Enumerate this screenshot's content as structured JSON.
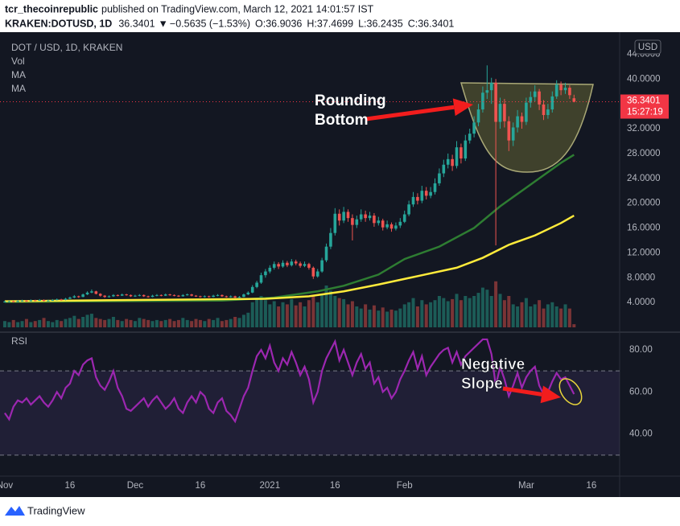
{
  "header": {
    "author": "tcr_thecoinrepublic",
    "published": "published on TradingView.com, March 12, 2021 14:01:57 IST",
    "symbol": "KRAKEN:DOTUSD, 1D",
    "last": "36.3401",
    "arrow": "▼",
    "change": "−0.5635 (−1.53%)",
    "ohlc": [
      [
        "O:",
        "36.9036"
      ],
      [
        "H:",
        "37.4699"
      ],
      [
        "L:",
        "36.2435"
      ],
      [
        "C:",
        "36.3401"
      ]
    ]
  },
  "legend": {
    "title": "DOT / USD, 1D, KRAKEN",
    "items": [
      "Vol",
      "MA",
      "MA"
    ]
  },
  "chart_data": {
    "type": "candlestick",
    "xlim": [
      -1.1,
      141.5
    ],
    "xticks": [
      {
        "value": 0,
        "label": "Nov"
      },
      {
        "value": 15,
        "label": "16"
      },
      {
        "value": 30,
        "label": "Dec"
      },
      {
        "value": 45,
        "label": "16"
      },
      {
        "value": 61,
        "label": "2021"
      },
      {
        "value": 76,
        "label": "16"
      },
      {
        "value": 92,
        "label": "Feb"
      },
      {
        "value": 120,
        "label": "Mar"
      },
      {
        "value": 135,
        "label": "16"
      }
    ],
    "ylim": [
      0,
      46.9
    ],
    "yticks": [
      {
        "value": 4,
        "label": "4.0000"
      },
      {
        "value": 8,
        "label": "8.0000"
      },
      {
        "value": 12,
        "label": "12.0000"
      },
      {
        "value": 16,
        "label": "16.0000"
      },
      {
        "value": 20,
        "label": "20.0000"
      },
      {
        "value": 24,
        "label": "24.0000"
      },
      {
        "value": 28,
        "label": "28.0000"
      },
      {
        "value": 32,
        "label": "32.0000"
      },
      {
        "value": 36,
        "label": "36.0000"
      },
      {
        "value": 40,
        "label": "40.0000"
      },
      {
        "value": 44,
        "label": "44.0000"
      }
    ],
    "currency": "USD",
    "last_price": 36.3401,
    "countdown": "15:27:19",
    "last_color": "#f23645",
    "up_color": "#26a69a",
    "down_color": "#ef5350",
    "candles": [
      [
        4.1,
        4.3,
        4.0,
        4.15
      ],
      [
        4.15,
        4.3,
        4.05,
        4.2
      ],
      [
        4.2,
        4.3,
        4.0,
        4.1
      ],
      [
        4.1,
        4.4,
        4.05,
        4.25
      ],
      [
        4.25,
        4.45,
        4.15,
        4.3
      ],
      [
        4.3,
        4.4,
        4.1,
        4.2
      ],
      [
        4.2,
        4.5,
        4.15,
        4.35
      ],
      [
        4.35,
        4.45,
        4.2,
        4.3
      ],
      [
        4.3,
        4.55,
        4.25,
        4.4
      ],
      [
        4.4,
        4.5,
        4.15,
        4.25
      ],
      [
        4.25,
        4.45,
        4.2,
        4.3
      ],
      [
        4.3,
        4.55,
        4.25,
        4.4
      ],
      [
        4.4,
        4.65,
        4.35,
        4.5
      ],
      [
        4.5,
        4.6,
        4.3,
        4.4
      ],
      [
        4.4,
        4.75,
        4.35,
        4.6
      ],
      [
        4.6,
        4.95,
        4.55,
        4.8
      ],
      [
        4.8,
        5.2,
        4.7,
        5.0
      ],
      [
        5.0,
        5.1,
        4.75,
        4.9
      ],
      [
        4.9,
        5.45,
        4.85,
        5.3
      ],
      [
        5.3,
        5.8,
        5.2,
        5.6
      ],
      [
        5.6,
        6.1,
        5.5,
        5.8
      ],
      [
        5.8,
        5.9,
        5.3,
        5.4
      ],
      [
        5.4,
        5.5,
        4.95,
        5.1
      ],
      [
        5.1,
        5.2,
        4.75,
        4.9
      ],
      [
        4.9,
        5.15,
        4.8,
        5.0
      ],
      [
        5.0,
        5.35,
        4.9,
        5.2
      ],
      [
        5.2,
        5.3,
        5.0,
        5.1
      ],
      [
        5.1,
        5.45,
        5.05,
        5.3
      ],
      [
        5.3,
        5.4,
        5.1,
        5.2
      ],
      [
        5.2,
        5.3,
        4.9,
        5.0
      ],
      [
        5.0,
        5.25,
        4.9,
        5.1
      ],
      [
        5.1,
        5.35,
        5.0,
        5.2
      ],
      [
        5.2,
        5.3,
        4.9,
        5.0
      ],
      [
        5.0,
        5.1,
        4.8,
        4.9
      ],
      [
        4.9,
        5.25,
        4.85,
        5.1
      ],
      [
        5.1,
        5.35,
        5.0,
        5.2
      ],
      [
        5.2,
        5.3,
        5.0,
        5.1
      ],
      [
        5.1,
        5.45,
        5.05,
        5.3
      ],
      [
        5.3,
        5.4,
        5.1,
        5.2
      ],
      [
        5.2,
        5.3,
        5.0,
        5.1
      ],
      [
        5.1,
        5.2,
        4.9,
        5.0
      ],
      [
        5.0,
        5.35,
        4.95,
        5.2
      ],
      [
        5.2,
        5.45,
        5.1,
        5.3
      ],
      [
        5.3,
        5.4,
        5.0,
        5.1
      ],
      [
        5.1,
        5.2,
        4.9,
        5.0
      ],
      [
        5.0,
        5.1,
        4.8,
        4.9
      ],
      [
        4.9,
        5.15,
        4.8,
        5.0
      ],
      [
        5.0,
        5.1,
        4.8,
        4.9
      ],
      [
        4.9,
        5.25,
        4.85,
        5.1
      ],
      [
        5.1,
        5.35,
        5.0,
        5.2
      ],
      [
        5.2,
        5.3,
        4.9,
        5.0
      ],
      [
        5.0,
        5.1,
        4.8,
        4.9
      ],
      [
        4.9,
        5.15,
        4.8,
        5.0
      ],
      [
        5.0,
        5.1,
        4.7,
        4.8
      ],
      [
        4.8,
        5.05,
        4.7,
        4.9
      ],
      [
        4.9,
        5.45,
        4.85,
        5.3
      ],
      [
        5.3,
        5.8,
        5.2,
        5.6
      ],
      [
        5.6,
        6.8,
        5.5,
        6.5
      ],
      [
        6.5,
        7.5,
        6.3,
        7.2
      ],
      [
        7.2,
        8.8,
        7.0,
        8.4
      ],
      [
        8.4,
        9.4,
        8.0,
        9.0
      ],
      [
        9.0,
        10.0,
        8.7,
        9.6
      ],
      [
        9.6,
        10.6,
        9.3,
        10.2
      ],
      [
        10.2,
        10.5,
        9.4,
        9.8
      ],
      [
        9.8,
        10.8,
        9.6,
        10.4
      ],
      [
        10.4,
        10.7,
        9.7,
        10.0
      ],
      [
        10.0,
        11.0,
        9.8,
        10.6
      ],
      [
        10.6,
        10.9,
        10.0,
        10.3
      ],
      [
        10.3,
        10.6,
        9.6,
        9.9
      ],
      [
        9.9,
        10.6,
        9.7,
        10.2
      ],
      [
        10.2,
        10.4,
        9.3,
        9.6
      ],
      [
        9.6,
        9.8,
        7.8,
        8.2
      ],
      [
        8.2,
        9.4,
        8.0,
        9.0
      ],
      [
        9.0,
        11.2,
        8.8,
        10.8
      ],
      [
        10.8,
        13.5,
        10.5,
        13.0
      ],
      [
        13.0,
        16.0,
        12.6,
        15.2
      ],
      [
        15.2,
        19.2,
        14.8,
        18.3
      ],
      [
        18.3,
        19.0,
        16.4,
        17.2
      ],
      [
        17.2,
        19.4,
        16.8,
        18.6
      ],
      [
        18.6,
        19.0,
        17.0,
        17.6
      ],
      [
        17.6,
        18.2,
        14.0,
        16.5
      ],
      [
        16.5,
        18.0,
        16.0,
        17.4
      ],
      [
        17.4,
        19.0,
        17.0,
        18.2
      ],
      [
        18.2,
        18.8,
        17.0,
        17.6
      ],
      [
        17.6,
        18.6,
        17.2,
        18.0
      ],
      [
        18.0,
        18.4,
        16.2,
        16.8
      ],
      [
        16.8,
        17.8,
        16.4,
        17.2
      ],
      [
        17.2,
        17.5,
        15.6,
        16.1
      ],
      [
        16.1,
        17.2,
        15.8,
        16.6
      ],
      [
        16.6,
        16.9,
        15.4,
        15.9
      ],
      [
        15.9,
        16.9,
        15.6,
        16.4
      ],
      [
        16.4,
        17.6,
        16.0,
        17.0
      ],
      [
        17.0,
        18.8,
        16.8,
        18.2
      ],
      [
        18.2,
        20.4,
        17.9,
        19.8
      ],
      [
        19.8,
        21.8,
        19.4,
        21.0
      ],
      [
        21.0,
        21.6,
        19.8,
        20.4
      ],
      [
        20.4,
        22.8,
        20.0,
        22.0
      ],
      [
        22.0,
        22.6,
        20.6,
        21.2
      ],
      [
        21.2,
        22.6,
        20.8,
        21.8
      ],
      [
        21.8,
        24.0,
        21.4,
        23.2
      ],
      [
        23.2,
        25.6,
        22.8,
        24.8
      ],
      [
        24.8,
        27.0,
        24.2,
        26.2
      ],
      [
        26.2,
        28.0,
        25.6,
        27.1
      ],
      [
        27.1,
        27.8,
        25.2,
        26.0
      ],
      [
        26.0,
        30.0,
        25.6,
        29.0
      ],
      [
        29.0,
        29.6,
        26.4,
        27.2
      ],
      [
        27.2,
        31.0,
        26.8,
        30.1
      ],
      [
        30.1,
        32.0,
        29.6,
        31.2
      ],
      [
        31.2,
        34.0,
        30.6,
        33.0
      ],
      [
        33.0,
        36.0,
        32.4,
        35.1
      ],
      [
        35.1,
        38.8,
        34.6,
        37.8
      ],
      [
        37.8,
        42.2,
        36.8,
        38.2
      ],
      [
        38.2,
        40.2,
        36.0,
        39.4
      ],
      [
        39.4,
        40.0,
        13.2,
        33.1
      ],
      [
        33.1,
        37.0,
        32.0,
        36.0
      ],
      [
        36.0,
        36.8,
        32.2,
        33.2
      ],
      [
        33.2,
        34.0,
        28.4,
        30.1
      ],
      [
        30.1,
        33.0,
        29.2,
        32.2
      ],
      [
        32.2,
        35.0,
        31.4,
        34.0
      ],
      [
        34.0,
        34.6,
        32.0,
        33.1
      ],
      [
        33.1,
        37.0,
        32.6,
        36.2
      ],
      [
        36.2,
        38.0,
        35.4,
        37.1
      ],
      [
        37.1,
        39.0,
        36.4,
        38.0
      ],
      [
        38.0,
        38.4,
        35.0,
        35.9
      ],
      [
        35.9,
        36.6,
        33.4,
        34.2
      ],
      [
        34.2,
        36.0,
        33.6,
        35.1
      ],
      [
        35.1,
        38.0,
        34.6,
        37.2
      ],
      [
        37.2,
        39.8,
        36.8,
        39.1
      ],
      [
        39.1,
        39.6,
        37.4,
        38.2
      ],
      [
        38.2,
        39.4,
        37.6,
        38.6
      ],
      [
        38.6,
        39.0,
        36.8,
        37.4
      ],
      [
        36.9036,
        37.4699,
        36.2435,
        36.3401
      ]
    ],
    "volume_lim": [
      0,
      100
    ],
    "volume": [
      6,
      5,
      7,
      5,
      6,
      8,
      5,
      6,
      7,
      9,
      6,
      5,
      7,
      6,
      8,
      9,
      11,
      8,
      10,
      12,
      13,
      9,
      8,
      7,
      8,
      10,
      7,
      6,
      8,
      7,
      6,
      9,
      8,
      7,
      6,
      7,
      6,
      7,
      8,
      6,
      7,
      9,
      7,
      6,
      8,
      7,
      6,
      8,
      7,
      9,
      6,
      7,
      8,
      10,
      9,
      12,
      14,
      24,
      28,
      30,
      26,
      22,
      25,
      20,
      24,
      22,
      27,
      21,
      24,
      20,
      26,
      30,
      24,
      32,
      40,
      35,
      30,
      28,
      27,
      22,
      25,
      20,
      18,
      22,
      17,
      21,
      16,
      19,
      15,
      17,
      16,
      18,
      22,
      24,
      28,
      20,
      26,
      22,
      24,
      26,
      30,
      28,
      25,
      27,
      32,
      26,
      30,
      28,
      30,
      33,
      38,
      36,
      30,
      44,
      32,
      26,
      30,
      22,
      20,
      24,
      28,
      20,
      22,
      26,
      18,
      22,
      24,
      20,
      18,
      22,
      18,
      3
    ],
    "ma": [
      {
        "color": "#2e7d32",
        "x": [
          0,
          50,
          62,
          72,
          78,
          86,
          92,
          100,
          108,
          114,
          120,
          124,
          128,
          131
        ],
        "values": [
          4.1,
          4.3,
          4.8,
          5.8,
          6.7,
          8.5,
          11.0,
          13.0,
          16.0,
          19.5,
          22.5,
          24.5,
          26.5,
          27.8
        ]
      },
      {
        "color": "#ffeb3b",
        "x": [
          0,
          30,
          60,
          70,
          78,
          86,
          96,
          104,
          110,
          116,
          122,
          128,
          131
        ],
        "values": [
          4.2,
          4.4,
          4.6,
          5.0,
          5.8,
          6.9,
          8.4,
          9.6,
          11.2,
          13.3,
          14.8,
          16.8,
          18.0
        ]
      }
    ],
    "rsi": {
      "label": "RSI",
      "color": "#9c27b0",
      "ylim": [
        20,
        86.5
      ],
      "bands": [
        30,
        70
      ],
      "yticks": [
        {
          "value": 40,
          "label": "40.00"
        },
        {
          "value": 60,
          "label": "60.00"
        },
        {
          "value": 80,
          "label": "80.00"
        }
      ],
      "values": [
        50,
        47,
        53,
        56,
        55,
        57,
        54,
        56,
        58,
        55,
        53,
        56,
        60,
        57,
        62,
        64,
        70,
        68,
        73,
        75,
        76,
        67,
        63,
        61,
        65,
        70,
        62,
        58,
        52,
        51,
        53,
        55,
        57,
        53,
        56,
        58,
        55,
        52,
        54,
        57,
        52,
        50,
        55,
        58,
        55,
        60,
        58,
        52,
        50,
        55,
        57,
        51,
        49,
        46,
        52,
        58,
        62,
        70,
        77,
        80,
        76,
        82,
        74,
        70,
        76,
        73,
        79,
        74,
        68,
        72,
        66,
        55,
        60,
        70,
        76,
        80,
        84,
        75,
        80,
        74,
        68,
        74,
        78,
        71,
        74,
        64,
        67,
        60,
        62,
        57,
        60,
        66,
        70,
        75,
        79,
        71,
        77,
        68,
        72,
        75,
        78,
        80,
        81,
        74,
        79,
        73,
        77,
        79,
        81,
        83,
        85,
        85,
        78,
        63,
        72,
        66,
        58,
        63,
        69,
        62,
        67,
        70,
        72,
        63,
        59,
        60,
        65,
        69,
        66,
        67,
        63,
        59
      ]
    },
    "annotations": [
      {
        "lines": [
          "Rounding",
          "Bottom"
        ]
      },
      {
        "lines": [
          "Negative",
          "Slope"
        ]
      }
    ]
  },
  "footer": "TradingView"
}
